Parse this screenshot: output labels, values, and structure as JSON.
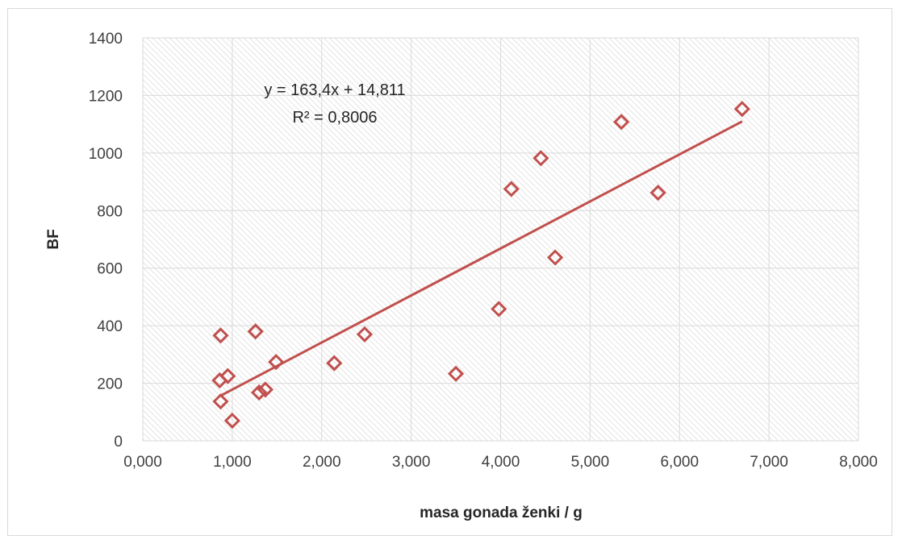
{
  "chart_data": {
    "type": "scatter",
    "xlabel": "masa gonada ženki / g",
    "ylabel": "BF",
    "xlim": [
      0,
      8
    ],
    "ylim": [
      0,
      1400
    ],
    "x_ticks": [
      "0,000",
      "1,000",
      "2,000",
      "3,000",
      "4,000",
      "5,000",
      "6,000",
      "7,000",
      "8,000"
    ],
    "y_ticks": [
      "0",
      "200",
      "400",
      "600",
      "800",
      "1000",
      "1200",
      "1400"
    ],
    "grid": true,
    "marker": "diamond",
    "series_color": "#c0504d",
    "points": [
      {
        "x": 0.87,
        "y": 366
      },
      {
        "x": 0.86,
        "y": 210
      },
      {
        "x": 0.95,
        "y": 225
      },
      {
        "x": 0.87,
        "y": 137
      },
      {
        "x": 1.0,
        "y": 70
      },
      {
        "x": 1.26,
        "y": 380
      },
      {
        "x": 1.3,
        "y": 168
      },
      {
        "x": 1.37,
        "y": 178
      },
      {
        "x": 1.49,
        "y": 274
      },
      {
        "x": 2.14,
        "y": 270
      },
      {
        "x": 2.48,
        "y": 370
      },
      {
        "x": 3.5,
        "y": 233
      },
      {
        "x": 3.98,
        "y": 458
      },
      {
        "x": 4.12,
        "y": 875
      },
      {
        "x": 4.45,
        "y": 982
      },
      {
        "x": 4.61,
        "y": 637
      },
      {
        "x": 5.35,
        "y": 1108
      },
      {
        "x": 5.76,
        "y": 862
      },
      {
        "x": 6.7,
        "y": 1153
      }
    ],
    "trendline": {
      "equation": "y = 163,4x + 14,811",
      "r_squared": "R² = 0,8006",
      "slope": 163.4,
      "intercept": 14.811,
      "x_start": 0.86,
      "x_end": 6.7
    }
  }
}
